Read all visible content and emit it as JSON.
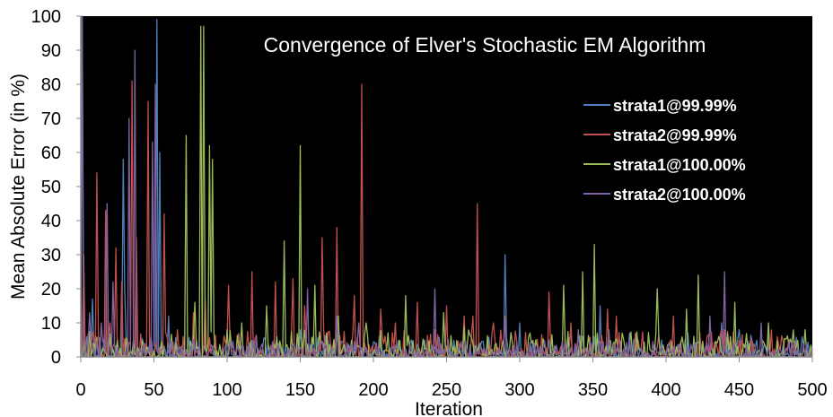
{
  "chart_data": {
    "type": "line",
    "title": "Convergence of Elver's Stochastic EM Algorithm",
    "xlabel": "Iteration",
    "ylabel": "Mean Absolute Error (in %)",
    "xlim": [
      0,
      500
    ],
    "ylim": [
      0,
      100
    ],
    "xticks": [
      0,
      50,
      100,
      150,
      200,
      250,
      300,
      350,
      400,
      450,
      500
    ],
    "yticks": [
      0,
      10,
      20,
      30,
      40,
      50,
      60,
      70,
      80,
      90,
      100
    ],
    "legend_position": "top-right",
    "background": "#000000",
    "series": [
      {
        "name": "strata1@99.99%",
        "color": "#4f81bd",
        "noise_amplitude": 4,
        "peaks": [
          [
            1,
            100
          ],
          [
            8,
            17
          ],
          [
            29,
            58
          ],
          [
            30,
            20
          ],
          [
            52,
            99
          ],
          [
            54,
            60
          ],
          [
            60,
            12
          ],
          [
            150,
            8
          ],
          [
            226,
            5
          ],
          [
            290,
            30
          ],
          [
            300,
            10
          ],
          [
            355,
            15
          ],
          [
            361,
            8
          ],
          [
            375,
            7
          ],
          [
            380,
            6
          ],
          [
            415,
            7
          ],
          [
            438,
            10
          ],
          [
            450,
            8
          ]
        ]
      },
      {
        "name": "strata2@99.99%",
        "color": "#c0504d",
        "noise_amplitude": 5,
        "peaks": [
          [
            2,
            30
          ],
          [
            11,
            54
          ],
          [
            17,
            43
          ],
          [
            20,
            10
          ],
          [
            24,
            32
          ],
          [
            28,
            22
          ],
          [
            35,
            81
          ],
          [
            38,
            35
          ],
          [
            46,
            75
          ],
          [
            57,
            42
          ],
          [
            66,
            8
          ],
          [
            77,
            13
          ],
          [
            85,
            17
          ],
          [
            101,
            21
          ],
          [
            117,
            25
          ],
          [
            133,
            22
          ],
          [
            145,
            23
          ],
          [
            153,
            15
          ],
          [
            165,
            35
          ],
          [
            175,
            38
          ],
          [
            187,
            18
          ],
          [
            192,
            80
          ],
          [
            205,
            14
          ],
          [
            215,
            10
          ],
          [
            230,
            16
          ],
          [
            242,
            8
          ],
          [
            250,
            15
          ],
          [
            262,
            12
          ],
          [
            268,
            12
          ],
          [
            271,
            45
          ],
          [
            282,
            10
          ],
          [
            290,
            12
          ],
          [
            320,
            19
          ],
          [
            335,
            10
          ],
          [
            360,
            14
          ],
          [
            366,
            12
          ],
          [
            405,
            12
          ],
          [
            440,
            8
          ],
          [
            470,
            6
          ]
        ]
      },
      {
        "name": "strata1@100.00%",
        "color": "#9bbb59",
        "noise_amplitude": 5,
        "peaks": [
          [
            72,
            65
          ],
          [
            78,
            16
          ],
          [
            82,
            97
          ],
          [
            84,
            97
          ],
          [
            88,
            62
          ],
          [
            90,
            58
          ],
          [
            100,
            8
          ],
          [
            110,
            10
          ],
          [
            127,
            15
          ],
          [
            139,
            34
          ],
          [
            150,
            62
          ],
          [
            160,
            21
          ],
          [
            176,
            12
          ],
          [
            195,
            10
          ],
          [
            222,
            18
          ],
          [
            248,
            13
          ],
          [
            262,
            9
          ],
          [
            307,
            7
          ],
          [
            330,
            21
          ],
          [
            343,
            25
          ],
          [
            351,
            33
          ],
          [
            370,
            7
          ],
          [
            394,
            20
          ],
          [
            414,
            14
          ],
          [
            422,
            24
          ],
          [
            447,
            16
          ],
          [
            470,
            10
          ],
          [
            495,
            8
          ]
        ]
      },
      {
        "name": "strata2@100.00%",
        "color": "#8064a2",
        "noise_amplitude": 3,
        "peaks": [
          [
            1,
            100
          ],
          [
            6,
            13
          ],
          [
            14,
            10
          ],
          [
            18,
            45
          ],
          [
            22,
            22
          ],
          [
            33,
            70
          ],
          [
            37,
            90
          ],
          [
            49,
            63
          ],
          [
            51,
            80
          ],
          [
            77,
            5
          ],
          [
            120,
            6
          ],
          [
            155,
            20
          ],
          [
            175,
            12
          ],
          [
            190,
            10
          ],
          [
            242,
            20
          ],
          [
            290,
            11
          ],
          [
            340,
            8
          ],
          [
            375,
            5
          ],
          [
            430,
            12
          ],
          [
            440,
            25
          ],
          [
            465,
            10
          ]
        ]
      }
    ]
  }
}
